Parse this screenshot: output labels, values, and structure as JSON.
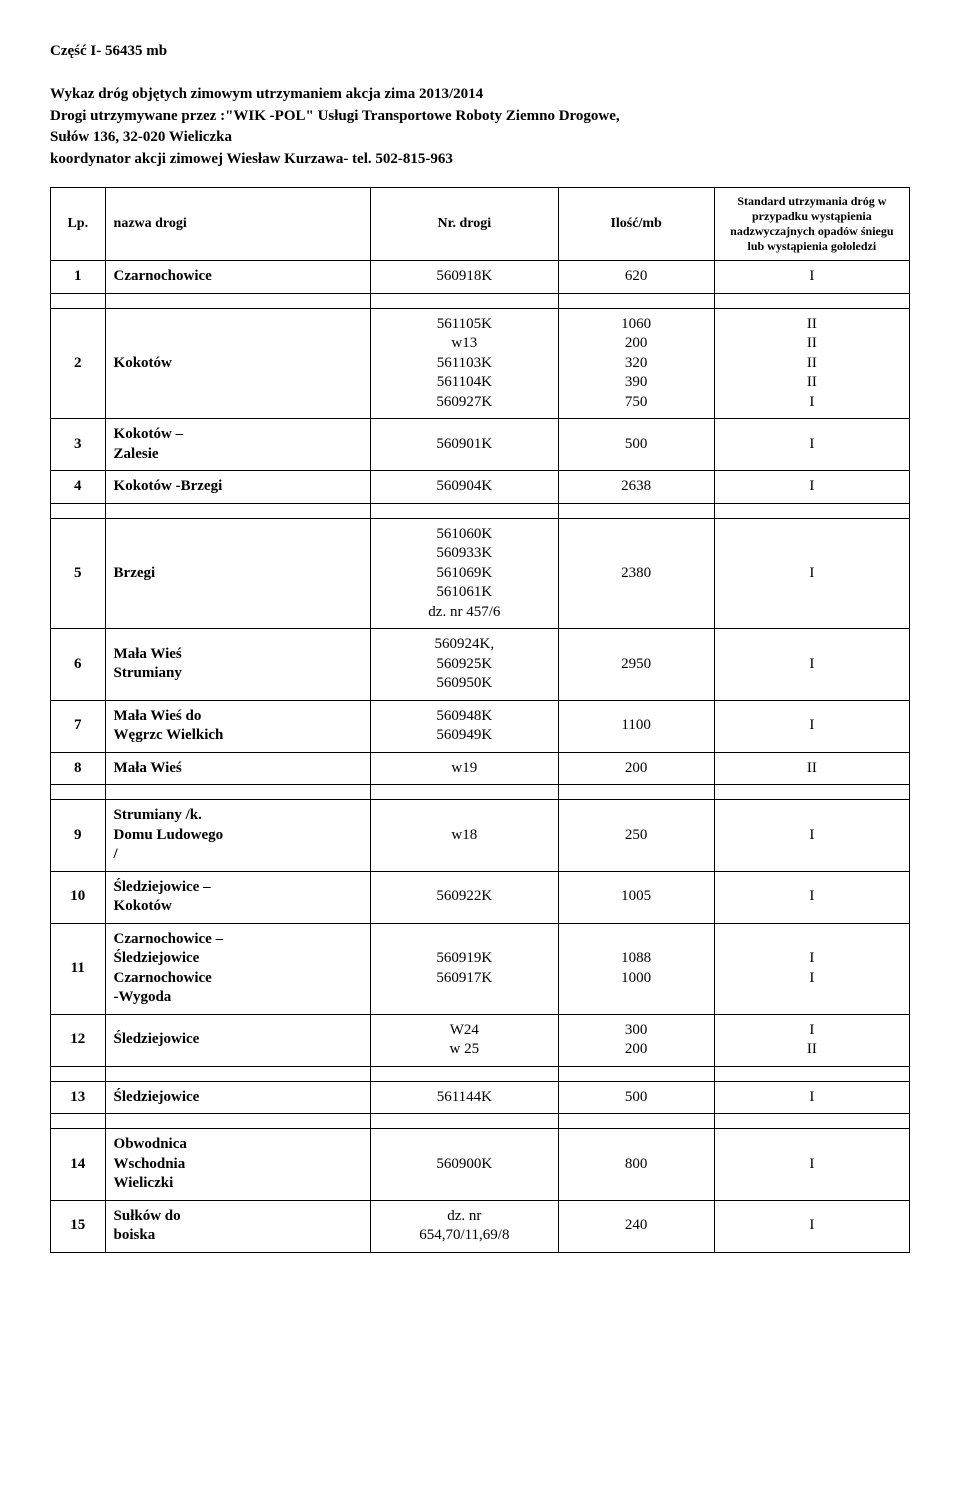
{
  "header": {
    "title": "Część I- 56435 mb",
    "line1": "Wykaz dróg objętych zimowym utrzymaniem akcja zima 2013/2014",
    "line2": "Drogi utrzymywane przez :\"WIK -POL\" Usługi Transportowe Roboty Ziemno Drogowe,",
    "line3": "Sułów 136, 32-020 Wieliczka",
    "line4": "koordynator akcji zimowej Wiesław Kurzawa- tel. 502-815-963"
  },
  "table": {
    "columns": {
      "lp": "Lp.",
      "name": "nazwa drogi",
      "nr": "Nr. drogi",
      "qty": "Ilość/mb",
      "std": "Standard utrzymania dróg w przypadku wystąpienia nadzwyczajnych opadów śniegu lub wystąpienia gołoledzi"
    },
    "rows": [
      {
        "lp": "1",
        "name": "Czarnochowice",
        "nr": "560918K",
        "qty": "620",
        "std": "I"
      },
      {
        "gap": true
      },
      {
        "lp": "2",
        "name": "Kokotów",
        "nr": "561105K\nw13\n561103K\n561104K\n560927K",
        "qty": "1060\n200\n320\n390\n750",
        "std": "II\nII\nII\nII\nI"
      },
      {
        "lp": "3",
        "name": "Kokotów –\nZalesie",
        "nr": "560901K",
        "qty": "500",
        "std": "I"
      },
      {
        "lp": "4",
        "name": "Kokotów -Brzegi",
        "nr": "560904K",
        "qty": "2638",
        "std": "I"
      },
      {
        "gap": true
      },
      {
        "lp": "5",
        "name": "Brzegi",
        "nr": "561060K\n560933K\n561069K\n561061K\ndz. nr 457/6",
        "qty": "2380",
        "std": "I"
      },
      {
        "lp": "6",
        "name": "Mała Wieś\nStrumiany",
        "nr": "560924K,\n560925K\n560950K",
        "qty": "2950",
        "std": "I"
      },
      {
        "lp": "7",
        "name": "Mała Wieś do\nWęgrzc Wielkich",
        "nr": "560948K\n560949K",
        "qty": "1100",
        "std": "I"
      },
      {
        "lp": "8",
        "name": "Mała Wieś",
        "nr": "w19",
        "qty": "200",
        "std": "II"
      },
      {
        "gap": true
      },
      {
        "lp": "9",
        "name": "Strumiany /k.\nDomu Ludowego\n/",
        "nr": "w18",
        "qty": "250",
        "std": "I"
      },
      {
        "lp": "10",
        "name": "Śledziejowice –\nKokotów",
        "nr": "560922K",
        "qty": "1005",
        "std": "I"
      },
      {
        "lp": "11",
        "name": "Czarnochowice –\nŚledziejowice\nCzarnochowice\n-Wygoda",
        "nr": "560919K\n560917K",
        "qty": "1088\n1000",
        "std": "I\nI"
      },
      {
        "lp": "12",
        "name": "Śledziejowice",
        "nr": "W24\nw 25",
        "qty": "300\n200",
        "std": "I\nII"
      },
      {
        "gap": true
      },
      {
        "lp": "13",
        "name": "Śledziejowice",
        "nr": "561144K",
        "qty": "500",
        "std": "I"
      },
      {
        "gap": true
      },
      {
        "lp": "14",
        "name": "Obwodnica\nWschodnia\nWieliczki",
        "nr": "560900K",
        "qty": "800",
        "std": "I"
      },
      {
        "lp": "15",
        "name": "Sułków do\nboiska",
        "nr": "dz. nr\n654,70/11,69/8",
        "qty": "240",
        "std": "I"
      }
    ]
  }
}
